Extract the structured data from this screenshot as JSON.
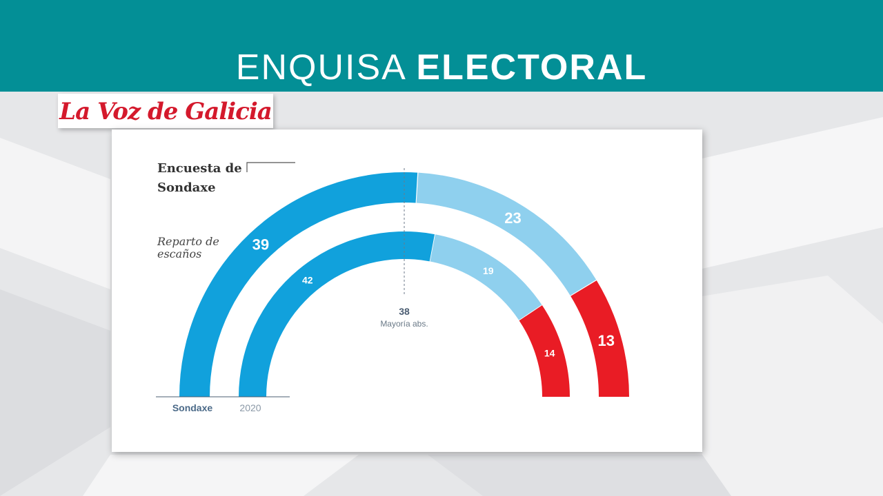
{
  "banner": {
    "title_part1": "ENQUISA",
    "title_part2": "ELECTORAL",
    "color": "#038f96"
  },
  "logo": {
    "text": "La Voz de Galicia",
    "color": "#d4192c"
  },
  "chart_data": {
    "type": "parliament-semicircle",
    "title": "Encuesta de Sondaxe",
    "subtitle": "Reparto de escaños",
    "majority": {
      "value": "38",
      "label": "Mayoría abs."
    },
    "rings": [
      {
        "name": "Sondaxe",
        "segments": [
          {
            "value": 39,
            "color": "#11a1dc"
          },
          {
            "value": 23,
            "color": "#8fd0ee"
          },
          {
            "value": 13,
            "color": "#e91c25"
          }
        ]
      },
      {
        "name": "2020",
        "segments": [
          {
            "value": 42,
            "color": "#11a1dc"
          },
          {
            "value": 19,
            "color": "#8fd0ee"
          },
          {
            "value": 14,
            "color": "#e91c25"
          }
        ]
      }
    ]
  }
}
